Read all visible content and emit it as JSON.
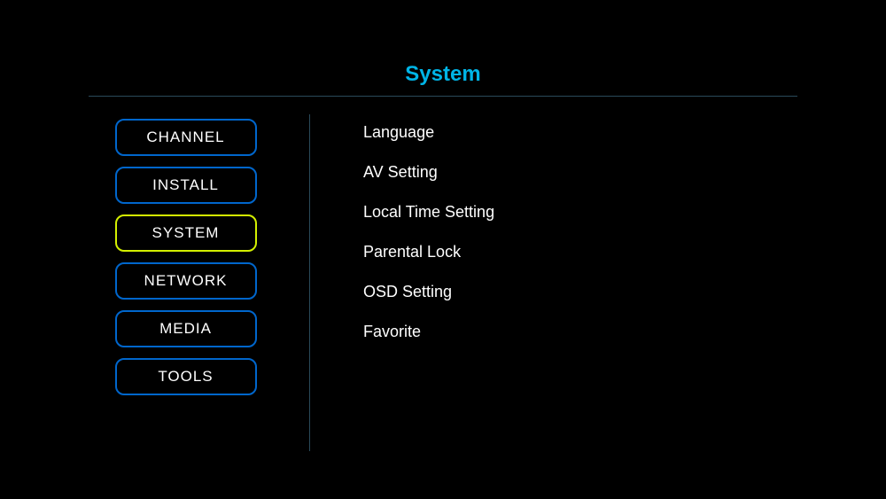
{
  "title": "System",
  "colors": {
    "background": "#000000",
    "title": "#00b4e6",
    "divider": "#2a4a5a",
    "button_border": "#0066cc",
    "button_border_selected": "#d4f000",
    "text": "#ffffff"
  },
  "menu": {
    "items": [
      {
        "label": "CHANNEL",
        "selected": false
      },
      {
        "label": "INSTALL",
        "selected": false
      },
      {
        "label": "SYSTEM",
        "selected": true
      },
      {
        "label": "NETWORK",
        "selected": false
      },
      {
        "label": "MEDIA",
        "selected": false
      },
      {
        "label": "TOOLS",
        "selected": false
      }
    ]
  },
  "options": {
    "items": [
      {
        "label": "Language"
      },
      {
        "label": "AV Setting"
      },
      {
        "label": "Local Time Setting"
      },
      {
        "label": "Parental Lock"
      },
      {
        "label": "OSD Setting"
      },
      {
        "label": "Favorite"
      }
    ]
  }
}
